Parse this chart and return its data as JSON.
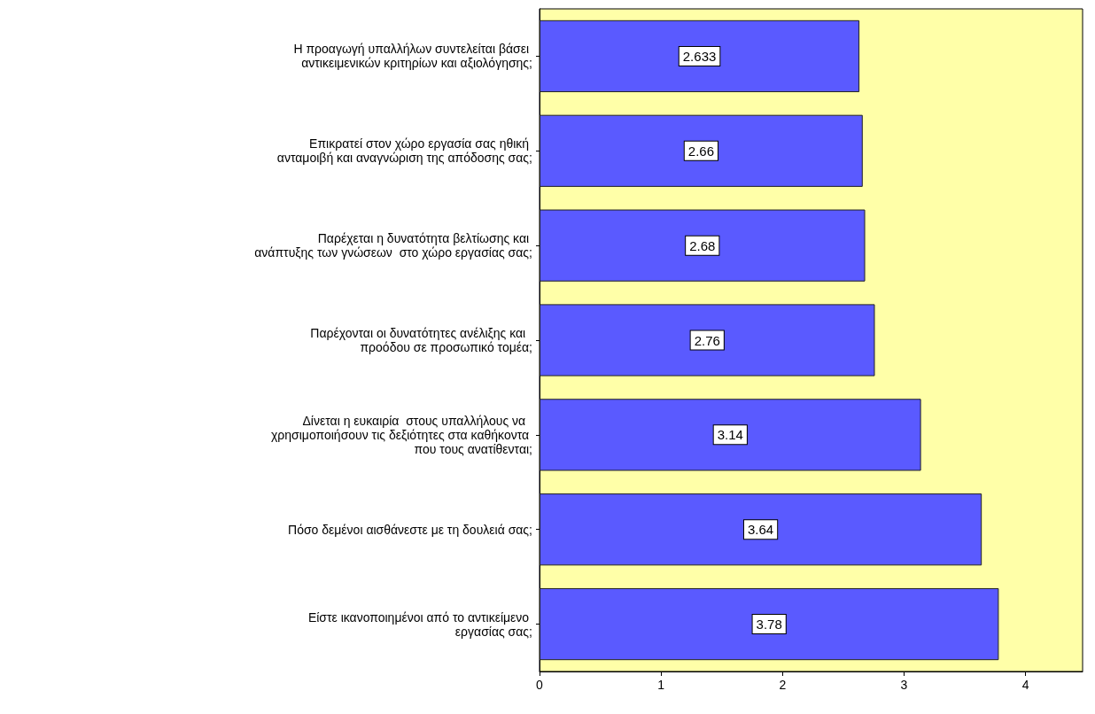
{
  "chart_data": {
    "type": "bar",
    "orientation": "horizontal",
    "categories": [
      "Η προαγωγή υπαλλήλων συντελείται βάσει αντικειμενικών κριτηρίων και αξιολόγησης;",
      "Επικρατεί στον χώρο εργασία σας ηθική ανταμοιβή και αναγνώριση της απόδοσης σας;",
      "Παρέχεται η δυνατότητα βελτίωσης και ανάπτυξης των γνώσεων  στο χώρο εργασίας σας;",
      "Παρέχονται οι δυνατότητες ανέλιξης και  προόδου σε προσωπικό τομέα;",
      "Δίνεται η ευκαιρία  στους υπαλλήλους να  χρησιμοποιήσουν τις δεξιότητες στα καθήκοντα που τους ανατίθενται;",
      "Πόσο δεμένοι αισθάνεστε με τη δουλειά σας;",
      "Είστε ικανοποιημένοι από το αντικείμενο εργασίας σας;"
    ],
    "values": [
      2.633,
      2.66,
      2.68,
      2.76,
      3.14,
      3.64,
      3.78
    ],
    "color": "#5a5aff",
    "xlim": [
      0,
      4.47
    ],
    "xticks": [
      0,
      1,
      2,
      3,
      4
    ],
    "bands": [
      {
        "axis": "x",
        "from": 0,
        "to": 4.47,
        "color": "#ffffa8"
      }
    ],
    "data_labels": true,
    "grid": false
  }
}
